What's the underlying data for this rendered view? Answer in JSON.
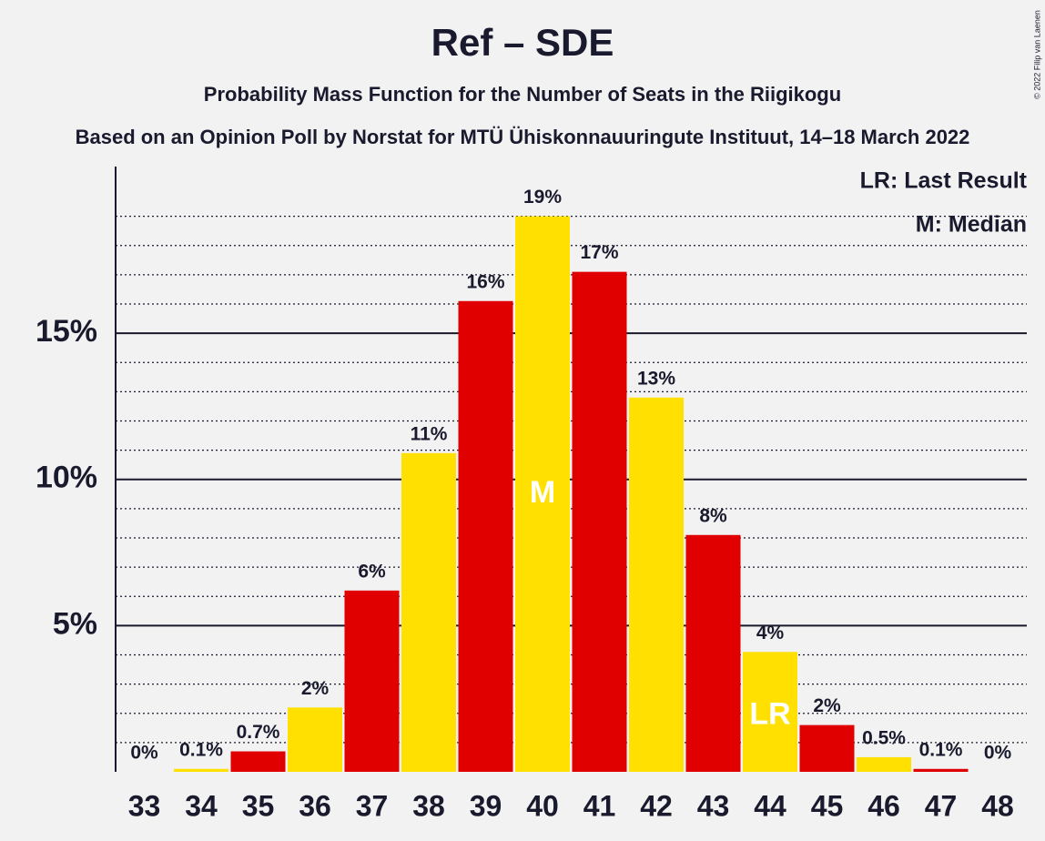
{
  "chart_data": {
    "type": "bar",
    "title": "Ref – SDE",
    "subtitle": "Probability Mass Function for the Number of Seats in the Riigikogu",
    "caption": "Based on an Opinion Poll by Norstat for MTÜ Ühiskonnauuringute Instituut, 14–18 March 2022",
    "copyright": "© 2022 Filip van Laenen",
    "categories": [
      "33",
      "34",
      "35",
      "36",
      "37",
      "38",
      "39",
      "40",
      "41",
      "42",
      "43",
      "44",
      "45",
      "46",
      "47",
      "48"
    ],
    "values": [
      0,
      0.1,
      0.7,
      2.2,
      6.2,
      10.9,
      16.1,
      19.0,
      17.1,
      12.8,
      8.1,
      4.1,
      1.6,
      0.5,
      0.1,
      0
    ],
    "value_labels": [
      "0%",
      "0.1%",
      "0.7%",
      "2%",
      "6%",
      "11%",
      "16%",
      "19%",
      "17%",
      "13%",
      "8%",
      "4%",
      "2%",
      "0.5%",
      "0.1%",
      "0%"
    ],
    "colors": [
      "#e00000",
      "#ffe000",
      "#e00000",
      "#ffe000",
      "#e00000",
      "#ffe000",
      "#e00000",
      "#ffe000",
      "#e00000",
      "#ffe000",
      "#e00000",
      "#ffe000",
      "#e00000",
      "#ffe000",
      "#e00000",
      "#ffe000"
    ],
    "bar_markers": [
      {
        "category": "40",
        "label": "M"
      },
      {
        "category": "44",
        "label": "LR"
      }
    ],
    "legend": [
      "LR: Last Result",
      "M: Median"
    ],
    "ylim": [
      0,
      20.7
    ],
    "yticks": [
      {
        "value": 5,
        "label": "5%"
      },
      {
        "value": 10,
        "label": "10%"
      },
      {
        "value": 15,
        "label": "15%"
      }
    ],
    "minor_yticks": [
      1,
      2,
      3,
      4,
      6,
      7,
      8,
      9,
      11,
      12,
      13,
      14,
      16,
      17,
      18,
      19
    ],
    "grid": true
  }
}
